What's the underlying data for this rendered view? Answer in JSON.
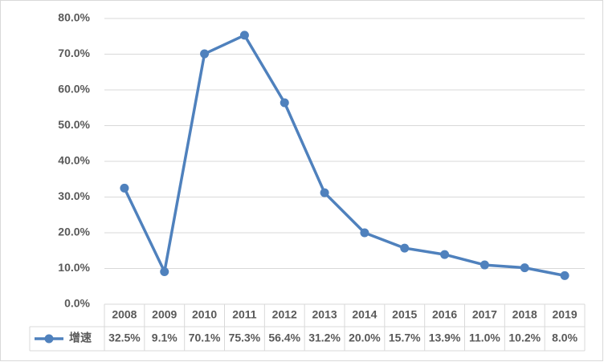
{
  "chart_data": {
    "type": "line",
    "categories": [
      "2008",
      "2009",
      "2010",
      "2011",
      "2012",
      "2013",
      "2014",
      "2015",
      "2016",
      "2017",
      "2018",
      "2019"
    ],
    "series": [
      {
        "name": "增速",
        "color": "#4f81bd",
        "values": [
          32.5,
          9.1,
          70.1,
          75.3,
          56.4,
          31.2,
          20.0,
          15.7,
          13.9,
          11.0,
          10.2,
          8.0
        ],
        "value_labels": [
          "32.5%",
          "9.1%",
          "70.1%",
          "75.3%",
          "56.4%",
          "31.2%",
          "20.0%",
          "15.7%",
          "13.9%",
          "11.0%",
          "10.2%",
          "8.0%"
        ]
      }
    ],
    "ylim": [
      0,
      80
    ],
    "yticks": [
      {
        "value": 0,
        "label": "0.0%"
      },
      {
        "value": 10,
        "label": "10.0%"
      },
      {
        "value": 20,
        "label": "20.0%"
      },
      {
        "value": 30,
        "label": "30.0%"
      },
      {
        "value": 40,
        "label": "40.0%"
      },
      {
        "value": 50,
        "label": "50.0%"
      },
      {
        "value": 60,
        "label": "60.0%"
      },
      {
        "value": 70,
        "label": "70.0%"
      },
      {
        "value": 80,
        "label": "80.0%"
      }
    ],
    "grid": true,
    "data_table": true
  }
}
